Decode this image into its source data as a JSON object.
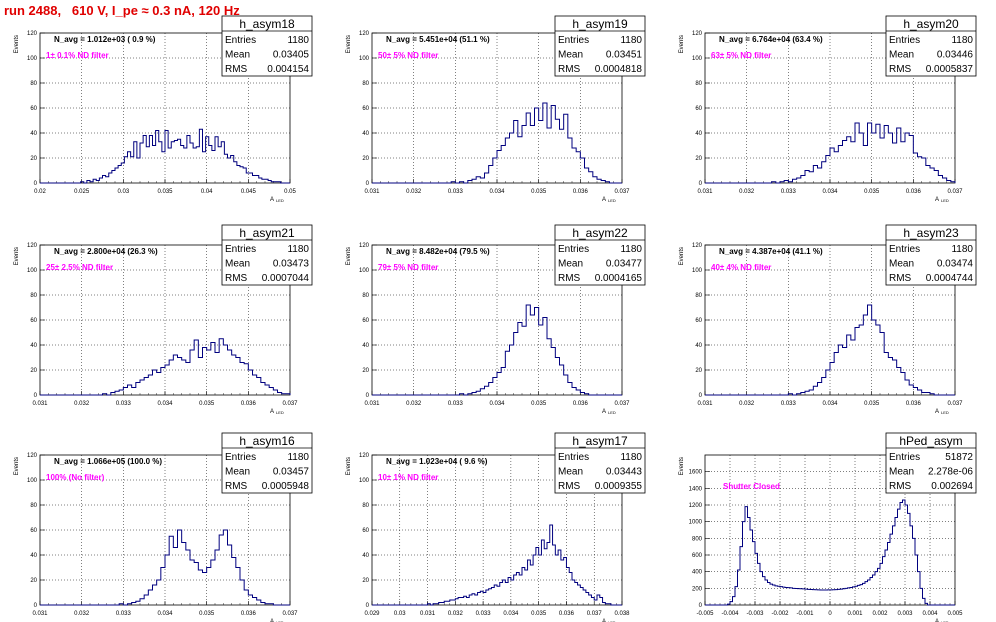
{
  "run_title": "run 2488,   610 V, I_pe ≈ 0.3 nA, 120 Hz",
  "axis_labels": {
    "y": "Events",
    "x": "A",
    "x_sub": "LED"
  },
  "stats_labels": {
    "entries": "Entries",
    "mean": "Mean",
    "rms": "RMS"
  },
  "colors": {
    "hist": "#00007f",
    "note": "#ff00ff",
    "title": "#e00000",
    "grid": "#000000"
  },
  "chart_data": [
    {
      "type": "histogram",
      "name": "h_asym18",
      "navg": "N_avg = 1.012e+03 ( 0.9 %)",
      "note": "1± 0.1% ND filter",
      "entries": "1180",
      "mean": "0.03405",
      "rms": "0.004154",
      "xlim": [
        0.018,
        0.05
      ],
      "ylim": [
        0,
        120
      ],
      "grid": true,
      "xticks": [
        "0.02",
        "0.025",
        "0.03",
        "0.035",
        "0.04",
        "0.045",
        "0.05"
      ],
      "yticks": [
        "0",
        "20",
        "40",
        "60",
        "80",
        "100",
        "120"
      ],
      "bins": {
        "x0": 0.018,
        "width": 0.0004,
        "values": [
          0,
          0,
          0,
          0,
          0,
          0,
          0,
          0,
          0,
          0,
          0,
          0,
          0,
          1,
          0,
          2,
          1,
          3,
          2,
          4,
          6,
          5,
          8,
          10,
          12,
          14,
          16,
          21,
          25,
          21,
          33,
          20,
          32,
          38,
          29,
          38,
          30,
          42,
          33,
          25,
          42,
          28,
          33,
          34,
          35,
          30,
          28,
          38,
          32,
          28,
          29,
          43,
          25,
          37,
          30,
          26,
          37,
          29,
          33,
          23,
          20,
          22,
          17,
          14,
          13,
          12,
          8,
          8,
          6,
          6,
          4,
          3,
          3,
          2,
          1,
          1,
          1,
          0,
          0,
          0
        ]
      }
    },
    {
      "type": "histogram",
      "name": "h_asym19",
      "navg": "N_avg = 5.451e+04 (51.1 %)",
      "note": "50± 5% ND filter",
      "entries": "1180",
      "mean": "0.03451",
      "rms": "0.0004818",
      "xlim": [
        0.031,
        0.037
      ],
      "ylim": [
        0,
        120
      ],
      "grid": true,
      "xticks": [
        "0.031",
        "0.032",
        "0.033",
        "0.034",
        "0.035",
        "0.036",
        "0.037"
      ],
      "yticks": [
        "0",
        "20",
        "40",
        "60",
        "80",
        "100",
        "120"
      ],
      "bins": {
        "x0": 0.031,
        "width": 0.0001,
        "values": [
          0,
          0,
          0,
          0,
          0,
          0,
          0,
          0,
          0,
          0,
          0,
          0,
          0,
          0,
          0,
          0,
          0,
          0,
          0,
          1,
          0,
          1,
          0,
          2,
          3,
          5,
          4,
          8,
          14,
          20,
          26,
          30,
          36,
          40,
          50,
          37,
          46,
          56,
          46,
          60,
          50,
          64,
          44,
          62,
          51,
          43,
          55,
          36,
          28,
          25,
          20,
          12,
          9,
          5,
          3,
          2,
          1,
          0,
          0,
          0,
          0,
          0,
          0,
          0,
          0,
          0,
          0,
          0,
          0,
          0
        ]
      }
    },
    {
      "type": "histogram",
      "name": "h_asym20",
      "navg": "N_avg = 6.764e+04 (63.4 %)",
      "note": "63± 5% ND filter",
      "entries": "1180",
      "mean": "0.03446",
      "rms": "0.0005837",
      "xlim": [
        0.031,
        0.037
      ],
      "ylim": [
        0,
        120
      ],
      "grid": true,
      "xticks": [
        "0.031",
        "0.032",
        "0.033",
        "0.034",
        "0.035",
        "0.036",
        "0.037"
      ],
      "yticks": [
        "0",
        "20",
        "40",
        "60",
        "80",
        "100",
        "120"
      ],
      "bins": {
        "x0": 0.031,
        "width": 0.0001,
        "values": [
          0,
          0,
          0,
          0,
          0,
          0,
          0,
          0,
          0,
          0,
          0,
          0,
          0,
          0,
          0,
          0,
          1,
          0,
          1,
          2,
          1,
          3,
          4,
          6,
          10,
          9,
          14,
          12,
          17,
          22,
          28,
          25,
          30,
          34,
          37,
          33,
          48,
          40,
          30,
          48,
          40,
          47,
          36,
          46,
          40,
          32,
          44,
          33,
          40,
          38,
          24,
          21,
          20,
          14,
          12,
          10,
          6,
          4,
          2,
          1,
          1,
          0,
          0,
          0,
          0,
          0,
          0,
          0,
          0,
          0
        ]
      }
    },
    {
      "type": "histogram",
      "name": "h_asym21",
      "navg": "N_avg = 2.800e+04 (26.3 %)",
      "note": "25± 2.5% ND filter",
      "entries": "1180",
      "mean": "0.03473",
      "rms": "0.0007044",
      "xlim": [
        0.031,
        0.037
      ],
      "ylim": [
        0,
        120
      ],
      "grid": true,
      "xticks": [
        "0.031",
        "0.032",
        "0.033",
        "0.034",
        "0.035",
        "0.036",
        "0.037"
      ],
      "yticks": [
        "0",
        "20",
        "40",
        "60",
        "80",
        "100",
        "120"
      ],
      "bins": {
        "x0": 0.031,
        "width": 0.0001,
        "values": [
          0,
          0,
          0,
          0,
          0,
          0,
          0,
          0,
          0,
          0,
          0,
          0,
          0,
          0,
          0,
          1,
          0,
          2,
          3,
          4,
          6,
          8,
          6,
          10,
          12,
          14,
          16,
          20,
          18,
          22,
          24,
          28,
          32,
          30,
          28,
          26,
          36,
          44,
          30,
          38,
          36,
          42,
          34,
          45,
          40,
          36,
          32,
          30,
          26,
          25,
          20,
          16,
          14,
          10,
          8,
          6,
          4,
          2,
          1,
          1,
          0,
          0,
          0,
          0,
          0,
          0,
          0,
          0,
          0,
          0
        ]
      }
    },
    {
      "type": "histogram",
      "name": "h_asym22",
      "navg": "N_avg = 8.482e+04 (79.5 %)",
      "note": "79± 5% ND filter",
      "entries": "1180",
      "mean": "0.03477",
      "rms": "0.0004165",
      "xlim": [
        0.031,
        0.037
      ],
      "ylim": [
        0,
        120
      ],
      "grid": true,
      "xticks": [
        "0.031",
        "0.032",
        "0.033",
        "0.034",
        "0.035",
        "0.036",
        "0.037"
      ],
      "yticks": [
        "0",
        "20",
        "40",
        "60",
        "80",
        "100",
        "120"
      ],
      "bins": {
        "x0": 0.031,
        "width": 0.0001,
        "values": [
          0,
          0,
          0,
          0,
          0,
          0,
          0,
          0,
          0,
          0,
          0,
          0,
          0,
          0,
          0,
          0,
          0,
          0,
          0,
          0,
          0,
          1,
          0,
          1,
          2,
          3,
          5,
          7,
          10,
          14,
          18,
          22,
          35,
          40,
          50,
          58,
          55,
          72,
          64,
          70,
          56,
          62,
          45,
          38,
          30,
          24,
          16,
          10,
          6,
          4,
          2,
          1,
          0,
          0,
          0,
          0,
          0,
          0,
          0,
          0,
          0,
          0,
          0,
          0,
          0,
          0,
          0,
          0,
          0,
          0
        ]
      }
    },
    {
      "type": "histogram",
      "name": "h_asym23",
      "navg": "N_avg = 4.387e+04 (41.1 %)",
      "note": "40± 4% ND filter",
      "entries": "1180",
      "mean": "0.03474",
      "rms": "0.0004744",
      "xlim": [
        0.031,
        0.037
      ],
      "ylim": [
        0,
        120
      ],
      "grid": true,
      "xticks": [
        "0.031",
        "0.032",
        "0.033",
        "0.034",
        "0.035",
        "0.036",
        "0.037"
      ],
      "yticks": [
        "0",
        "20",
        "40",
        "60",
        "80",
        "100",
        "120"
      ],
      "bins": {
        "x0": 0.031,
        "width": 0.0001,
        "values": [
          0,
          0,
          0,
          0,
          0,
          0,
          0,
          0,
          0,
          0,
          0,
          0,
          0,
          0,
          0,
          0,
          0,
          0,
          0,
          0,
          1,
          0,
          1,
          2,
          3,
          4,
          7,
          10,
          14,
          20,
          26,
          34,
          40,
          38,
          48,
          44,
          54,
          56,
          64,
          72,
          60,
          56,
          50,
          34,
          30,
          28,
          22,
          18,
          12,
          8,
          6,
          4,
          2,
          2,
          1,
          0,
          0,
          0,
          0,
          0,
          0,
          0,
          0,
          0,
          0,
          0,
          0,
          0,
          0,
          0
        ]
      }
    },
    {
      "type": "histogram",
      "name": "h_asym16",
      "navg": "N_avg = 1.066e+05 (100.0 %)",
      "note": "100% (No filter)",
      "entries": "1180",
      "mean": "0.03457",
      "rms": "0.0005948",
      "xlim": [
        0.031,
        0.037
      ],
      "ylim": [
        0,
        120
      ],
      "grid": true,
      "xticks": [
        "0.031",
        "0.032",
        "0.033",
        "0.034",
        "0.035",
        "0.036",
        "0.037"
      ],
      "yticks": [
        "0",
        "20",
        "40",
        "60",
        "80",
        "100",
        "120"
      ],
      "bins": {
        "x0": 0.031,
        "width": 0.0001,
        "values": [
          0,
          0,
          0,
          0,
          0,
          0,
          0,
          0,
          0,
          0,
          0,
          0,
          0,
          0,
          0,
          0,
          0,
          0,
          0,
          1,
          0,
          1,
          2,
          3,
          5,
          8,
          12,
          16,
          20,
          30,
          40,
          55,
          46,
          60,
          50,
          44,
          36,
          34,
          28,
          26,
          30,
          36,
          44,
          56,
          60,
          48,
          38,
          30,
          20,
          12,
          8,
          6,
          4,
          2,
          1,
          1,
          0,
          0,
          0,
          0,
          0,
          0,
          0,
          0,
          0,
          0,
          0,
          0,
          0,
          0
        ]
      }
    },
    {
      "type": "histogram",
      "name": "h_asym17",
      "navg": "N_avg = 1.023e+04 ( 9.6 %)",
      "note": "10± 1% ND filter",
      "entries": "1180",
      "mean": "0.03443",
      "rms": "0.0009355",
      "xlim": [
        0.029,
        0.038
      ],
      "ylim": [
        0,
        120
      ],
      "grid": true,
      "xticks": [
        "0.029",
        "0.03",
        "0.031",
        "0.032",
        "0.033",
        "0.034",
        "0.035",
        "0.036",
        "0.037",
        "0.038"
      ],
      "yticks": [
        "0",
        "20",
        "40",
        "60",
        "80",
        "100",
        "120"
      ],
      "bins": {
        "x0": 0.029,
        "width": 0.0001,
        "values": [
          0,
          0,
          0,
          0,
          0,
          0,
          0,
          0,
          0,
          0,
          0,
          0,
          0,
          0,
          0,
          0,
          0,
          0,
          0,
          0,
          1,
          0,
          1,
          1,
          2,
          2,
          3,
          3,
          4,
          4,
          5,
          6,
          6,
          7,
          6,
          8,
          9,
          8,
          10,
          11,
          10,
          12,
          13,
          14,
          16,
          15,
          18,
          20,
          18,
          22,
          20,
          24,
          26,
          24,
          30,
          28,
          36,
          32,
          40,
          46,
          40,
          52,
          45,
          50,
          64,
          48,
          40,
          44,
          36,
          38,
          30,
          26,
          20,
          18,
          16,
          14,
          12,
          10,
          8,
          6,
          4,
          8,
          6,
          2,
          1,
          1,
          0,
          0,
          0,
          0
        ]
      }
    },
    {
      "type": "histogram",
      "name": "hPed_asym",
      "navg": "",
      "note": "Shutter Closed",
      "entries": "51872",
      "mean": "2.278e-06",
      "rms": "0.002694",
      "xlim": [
        -0.005,
        0.005
      ],
      "ylim": [
        0,
        1800
      ],
      "grid": true,
      "xticks": [
        "-0.005",
        "-0.004",
        "-0.003",
        "-0.002",
        "-0.001",
        "0",
        "0.001",
        "0.002",
        "0.003",
        "0.004",
        "0.005"
      ],
      "yticks": [
        "0",
        "200",
        "400",
        "600",
        "800",
        "1000",
        "1200",
        "1400",
        "1600"
      ],
      "bins": {
        "x0": -0.005,
        "width": 0.0001,
        "values": [
          0,
          0,
          0,
          0,
          0,
          0,
          0,
          0,
          0,
          10,
          40,
          100,
          220,
          420,
          700,
          1000,
          1180,
          1050,
          900,
          760,
          620,
          500,
          400,
          340,
          300,
          270,
          250,
          240,
          230,
          225,
          220,
          215,
          210,
          208,
          205,
          200,
          198,
          196,
          195,
          193,
          190,
          188,
          186,
          185,
          183,
          182,
          180,
          180,
          180,
          181,
          182,
          183,
          185,
          188,
          190,
          195,
          200,
          205,
          210,
          218,
          225,
          235,
          245,
          260,
          280,
          300,
          330,
          360,
          400,
          440,
          500,
          580,
          660,
          750,
          850,
          950,
          1050,
          1150,
          1230,
          1260,
          1200,
          1100,
          950,
          800,
          600,
          400,
          200,
          80,
          20,
          0,
          0,
          0,
          0,
          0,
          0,
          0,
          0,
          0,
          0,
          0
        ]
      }
    }
  ]
}
